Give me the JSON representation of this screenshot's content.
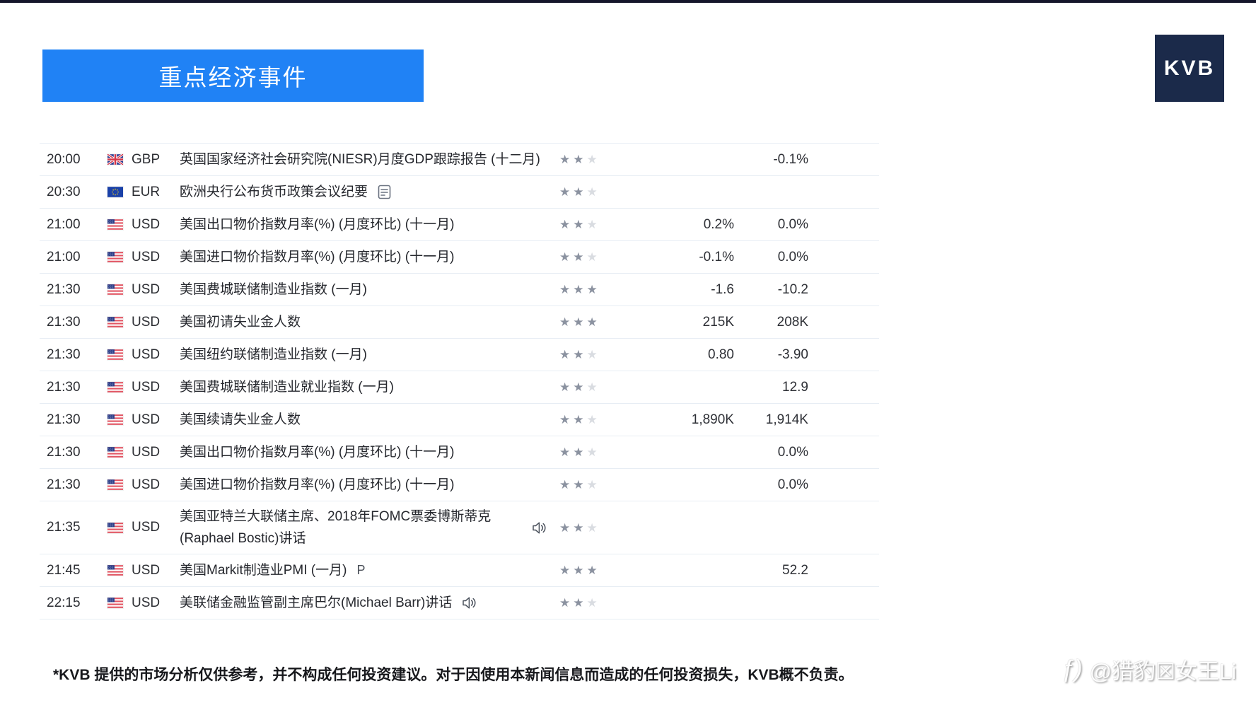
{
  "page": {
    "title_banner": "重点经济事件",
    "logo_text": "KVB",
    "disclaimer": "*KVB 提供的市场分析仅供参考，并不构成任何投资建议。对于因使用本新闻信息而造成的任何投资损失，KVB概不负责。",
    "watermark_icon": "ƒ)",
    "watermark_text": "@猎豹☒女王Li"
  },
  "colors": {
    "banner_blue": "#2082f5",
    "logo_navy": "#1b2a4a",
    "star_filled": "#8b92a0",
    "star_empty": "#d9dce1",
    "divider": "#e7edf4"
  },
  "events": [
    {
      "time": "20:00",
      "flag": "uk-flag",
      "currency": "GBP",
      "event": "英国国家经济社会研究院(NIESR)月度GDP跟踪报告 (十二月)",
      "icon": null,
      "marker": null,
      "stars": 2,
      "value1": "",
      "value2": "-0.1%"
    },
    {
      "time": "20:30",
      "flag": "eu-flag",
      "currency": "EUR",
      "event": "欧洲央行公布货币政策会议纪要",
      "icon": "document-icon",
      "marker": null,
      "stars": 2,
      "value1": "",
      "value2": ""
    },
    {
      "time": "21:00",
      "flag": "us-flag",
      "currency": "USD",
      "event": "美国出口物价指数月率(%) (月度环比) (十一月)",
      "icon": null,
      "marker": null,
      "stars": 2,
      "value1": "0.2%",
      "value2": "0.0%"
    },
    {
      "time": "21:00",
      "flag": "us-flag",
      "currency": "USD",
      "event": "美国进口物价指数月率(%) (月度环比) (十一月)",
      "icon": null,
      "marker": null,
      "stars": 2,
      "value1": "-0.1%",
      "value2": "0.0%"
    },
    {
      "time": "21:30",
      "flag": "us-flag",
      "currency": "USD",
      "event": "美国费城联储制造业指数 (一月)",
      "icon": null,
      "marker": null,
      "stars": 3,
      "value1": "-1.6",
      "value2": "-10.2"
    },
    {
      "time": "21:30",
      "flag": "us-flag",
      "currency": "USD",
      "event": "美国初请失业金人数",
      "icon": null,
      "marker": null,
      "stars": 3,
      "value1": "215K",
      "value2": "208K"
    },
    {
      "time": "21:30",
      "flag": "us-flag",
      "currency": "USD",
      "event": "美国纽约联储制造业指数 (一月)",
      "icon": null,
      "marker": null,
      "stars": 2,
      "value1": "0.80",
      "value2": "-3.90"
    },
    {
      "time": "21:30",
      "flag": "us-flag",
      "currency": "USD",
      "event": "美国费城联储制造业就业指数 (一月)",
      "icon": null,
      "marker": null,
      "stars": 2,
      "value1": "",
      "value2": "12.9"
    },
    {
      "time": "21:30",
      "flag": "us-flag",
      "currency": "USD",
      "event": "美国续请失业金人数",
      "icon": null,
      "marker": null,
      "stars": 2,
      "value1": "1,890K",
      "value2": "1,914K"
    },
    {
      "time": "21:30",
      "flag": "us-flag",
      "currency": "USD",
      "event": "美国出口物价指数月率(%) (月度环比) (十一月)",
      "icon": null,
      "marker": null,
      "stars": 2,
      "value1": "",
      "value2": "0.0%"
    },
    {
      "time": "21:30",
      "flag": "us-flag",
      "currency": "USD",
      "event": "美国进口物价指数月率(%) (月度环比) (十一月)",
      "icon": null,
      "marker": null,
      "stars": 2,
      "value1": "",
      "value2": "0.0%"
    },
    {
      "time": "21:35",
      "flag": "us-flag",
      "currency": "USD",
      "event": "美国亚特兰大联储主席、2018年FOMC票委博斯蒂克(Raphael Bostic)讲话",
      "icon": "speaker-icon",
      "marker": null,
      "stars": 2,
      "value1": "",
      "value2": ""
    },
    {
      "time": "21:45",
      "flag": "us-flag",
      "currency": "USD",
      "event": "美国Markit制造业PMI (一月)",
      "icon": null,
      "marker": "P",
      "stars": 3,
      "value1": "",
      "value2": "52.2"
    },
    {
      "time": "22:15",
      "flag": "us-flag",
      "currency": "USD",
      "event": "美联储金融监管副主席巴尔(Michael Barr)讲话",
      "icon": "speaker-icon",
      "marker": null,
      "stars": 2,
      "value1": "",
      "value2": ""
    }
  ]
}
